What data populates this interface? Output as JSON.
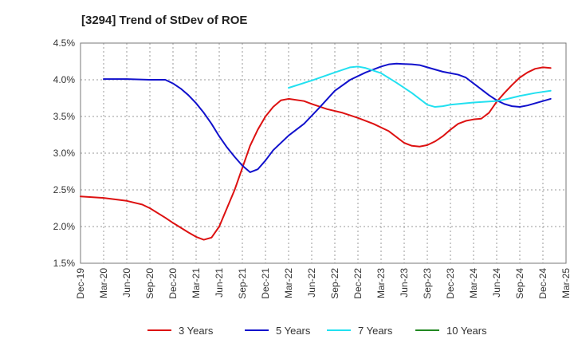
{
  "chart_data": {
    "type": "line",
    "title": "[3294]  Trend of StDev of ROE",
    "xlabel": "",
    "ylabel": "",
    "ylim": [
      1.5,
      4.5
    ],
    "y_ticks": [
      1.5,
      2.0,
      2.5,
      3.0,
      3.5,
      4.0,
      4.5
    ],
    "y_tick_labels": [
      "1.5%",
      "2.0%",
      "2.5%",
      "3.0%",
      "3.5%",
      "4.0%",
      "4.5%"
    ],
    "x_tick_labels": [
      "Dec-19",
      "Mar-20",
      "Jun-20",
      "Sep-20",
      "Dec-20",
      "Mar-21",
      "Jun-21",
      "Sep-21",
      "Dec-21",
      "Mar-22",
      "Jun-22",
      "Sep-22",
      "Dec-22",
      "Mar-23",
      "Jun-23",
      "Sep-23",
      "Dec-23",
      "Mar-24",
      "Jun-24",
      "Sep-24",
      "Dec-24",
      "Mar-25"
    ],
    "grid": true,
    "legend_position": "bottom",
    "series": [
      {
        "name": "3 Years",
        "color": "#dd1111",
        "points": [
          [
            "Dec-19",
            2.41
          ],
          [
            "Mar-20",
            2.39
          ],
          [
            "Jun-20",
            2.35
          ],
          [
            "Aug-20",
            2.3
          ],
          [
            "Sep-20",
            2.25
          ],
          [
            "Nov-20",
            2.12
          ],
          [
            "Dec-20",
            2.05
          ],
          [
            "Feb-21",
            1.92
          ],
          [
            "Mar-21",
            1.86
          ],
          [
            "Apr-21",
            1.82
          ],
          [
            "May-21",
            1.85
          ],
          [
            "Jun-21",
            2.0
          ],
          [
            "Aug-21",
            2.5
          ],
          [
            "Sep-21",
            2.8
          ],
          [
            "Oct-21",
            3.1
          ],
          [
            "Nov-21",
            3.32
          ],
          [
            "Dec-21",
            3.5
          ],
          [
            "Jan-22",
            3.63
          ],
          [
            "Feb-22",
            3.72
          ],
          [
            "Mar-22",
            3.74
          ],
          [
            "May-22",
            3.71
          ],
          [
            "Jun-22",
            3.67
          ],
          [
            "Aug-22",
            3.6
          ],
          [
            "Oct-22",
            3.55
          ],
          [
            "Dec-22",
            3.48
          ],
          [
            "Feb-23",
            3.4
          ],
          [
            "Apr-23",
            3.3
          ],
          [
            "Jun-23",
            3.14
          ],
          [
            "Jul-23",
            3.1
          ],
          [
            "Aug-23",
            3.09
          ],
          [
            "Sep-23",
            3.11
          ],
          [
            "Oct-23",
            3.16
          ],
          [
            "Nov-23",
            3.23
          ],
          [
            "Dec-23",
            3.32
          ],
          [
            "Jan-24",
            3.4
          ],
          [
            "Feb-24",
            3.44
          ],
          [
            "Mar-24",
            3.46
          ],
          [
            "Apr-24",
            3.47
          ],
          [
            "May-24",
            3.55
          ],
          [
            "Jun-24",
            3.7
          ],
          [
            "Jul-24",
            3.82
          ],
          [
            "Aug-24",
            3.93
          ],
          [
            "Sep-24",
            4.03
          ],
          [
            "Oct-24",
            4.1
          ],
          [
            "Nov-24",
            4.15
          ],
          [
            "Dec-24",
            4.17
          ],
          [
            "Jan-25",
            4.16
          ]
        ]
      },
      {
        "name": "5 Years",
        "color": "#1111cc",
        "points": [
          [
            "Mar-20",
            4.01
          ],
          [
            "Jun-20",
            4.01
          ],
          [
            "Sep-20",
            4.0
          ],
          [
            "Nov-20",
            4.0
          ],
          [
            "Dec-20",
            3.95
          ],
          [
            "Jan-21",
            3.88
          ],
          [
            "Feb-21",
            3.79
          ],
          [
            "Mar-21",
            3.68
          ],
          [
            "Apr-21",
            3.55
          ],
          [
            "May-21",
            3.4
          ],
          [
            "Jun-21",
            3.23
          ],
          [
            "Jul-21",
            3.08
          ],
          [
            "Aug-21",
            2.95
          ],
          [
            "Sep-21",
            2.83
          ],
          [
            "Oct-21",
            2.74
          ],
          [
            "Nov-21",
            2.78
          ],
          [
            "Dec-21",
            2.9
          ],
          [
            "Jan-22",
            3.04
          ],
          [
            "Mar-22",
            3.24
          ],
          [
            "May-22",
            3.4
          ],
          [
            "Jul-22",
            3.62
          ],
          [
            "Sep-22",
            3.85
          ],
          [
            "Nov-22",
            4.0
          ],
          [
            "Jan-23",
            4.1
          ],
          [
            "Mar-23",
            4.18
          ],
          [
            "Apr-23",
            4.21
          ],
          [
            "May-23",
            4.22
          ],
          [
            "Jul-23",
            4.21
          ],
          [
            "Aug-23",
            4.2
          ],
          [
            "Sep-23",
            4.17
          ],
          [
            "Oct-23",
            4.14
          ],
          [
            "Nov-23",
            4.11
          ],
          [
            "Dec-23",
            4.09
          ],
          [
            "Jan-24",
            4.07
          ],
          [
            "Feb-24",
            4.03
          ],
          [
            "Mar-24",
            3.95
          ],
          [
            "Apr-24",
            3.87
          ],
          [
            "May-24",
            3.79
          ],
          [
            "Jun-24",
            3.72
          ],
          [
            "Jul-24",
            3.67
          ],
          [
            "Aug-24",
            3.64
          ],
          [
            "Sep-24",
            3.63
          ],
          [
            "Oct-24",
            3.65
          ],
          [
            "Nov-24",
            3.68
          ],
          [
            "Dec-24",
            3.71
          ],
          [
            "Jan-25",
            3.74
          ]
        ]
      },
      {
        "name": "7 Years",
        "color": "#22e0f0",
        "points": [
          [
            "Mar-22",
            3.89
          ],
          [
            "Jun-22",
            3.99
          ],
          [
            "Sep-22",
            4.1
          ],
          [
            "Nov-22",
            4.17
          ],
          [
            "Dec-22",
            4.18
          ],
          [
            "Jan-23",
            4.16
          ],
          [
            "Mar-23",
            4.09
          ],
          [
            "May-23",
            3.96
          ],
          [
            "Jul-23",
            3.82
          ],
          [
            "Aug-23",
            3.74
          ],
          [
            "Sep-23",
            3.66
          ],
          [
            "Oct-23",
            3.63
          ],
          [
            "Nov-23",
            3.64
          ],
          [
            "Dec-23",
            3.66
          ],
          [
            "Mar-24",
            3.69
          ],
          [
            "Jun-24",
            3.71
          ],
          [
            "Jul-24",
            3.73
          ],
          [
            "Sep-24",
            3.78
          ],
          [
            "Nov-24",
            3.82
          ],
          [
            "Jan-25",
            3.85
          ]
        ]
      },
      {
        "name": "10 Years",
        "color": "#228822",
        "points": []
      }
    ]
  }
}
